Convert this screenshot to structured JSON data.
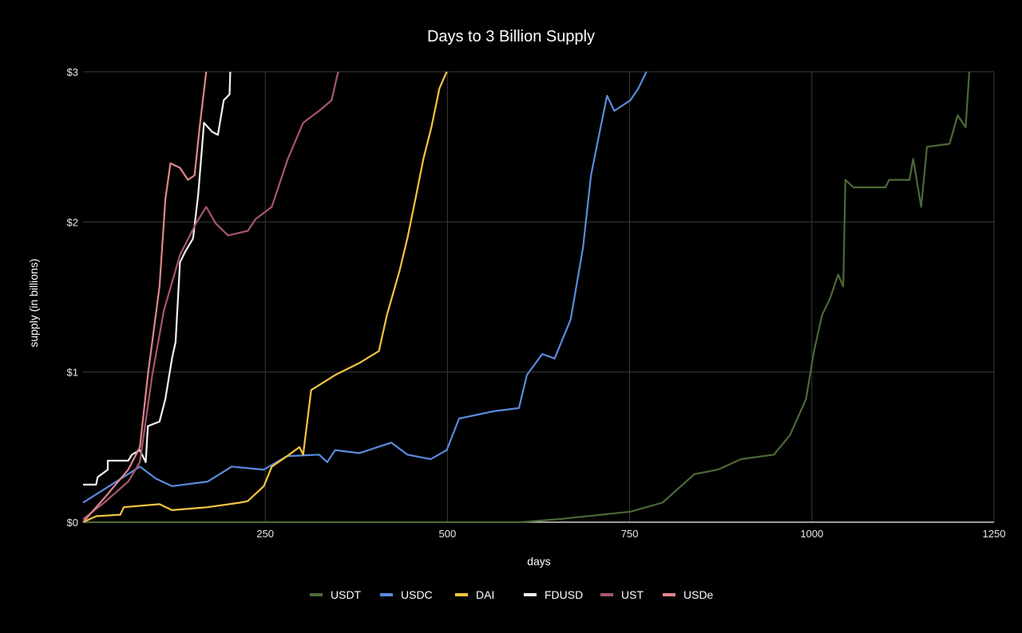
{
  "chart_data": {
    "type": "line",
    "title": "Days to 3 Billion Supply",
    "xlabel": "days",
    "ylabel": "supply (in billions)",
    "xlim": [
      0,
      1250
    ],
    "ylim": [
      0,
      3
    ],
    "xticks": [
      250,
      500,
      750,
      1000,
      1250
    ],
    "xtick_labels": [
      "250",
      "500",
      "750",
      "1000",
      "1250"
    ],
    "yticks": [
      0,
      1,
      2,
      3
    ],
    "ytick_labels": [
      "$0",
      "$1",
      "$2",
      "$3"
    ],
    "grid": true,
    "legend_placement": "bottom",
    "background": "#000000",
    "series": [
      {
        "name": "USDT",
        "color": "#4b6a36",
        "points": [
          [
            0,
            0
          ],
          [
            600,
            0
          ],
          [
            653,
            0.02
          ],
          [
            751,
            0.07
          ],
          [
            795,
            0.13
          ],
          [
            839,
            0.32
          ],
          [
            871,
            0.35
          ],
          [
            903,
            0.42
          ],
          [
            948,
            0.45
          ],
          [
            970,
            0.58
          ],
          [
            992,
            0.82
          ],
          [
            1003,
            1.14
          ],
          [
            1014,
            1.38
          ],
          [
            1025,
            1.49
          ],
          [
            1036,
            1.65
          ],
          [
            1043,
            1.57
          ],
          [
            1046,
            2.28
          ],
          [
            1057,
            2.23
          ],
          [
            1101,
            2.23
          ],
          [
            1106,
            2.28
          ],
          [
            1134,
            2.28
          ],
          [
            1139,
            2.42
          ],
          [
            1150,
            2.1
          ],
          [
            1158,
            2.5
          ],
          [
            1189,
            2.52
          ],
          [
            1200,
            2.71
          ],
          [
            1211,
            2.63
          ],
          [
            1216,
            3.0
          ]
        ]
      },
      {
        "name": "USDC",
        "color": "#5a8bdc",
        "points": [
          [
            0,
            0.13
          ],
          [
            78,
            0.37
          ],
          [
            100,
            0.29
          ],
          [
            122,
            0.24
          ],
          [
            171,
            0.27
          ],
          [
            204,
            0.37
          ],
          [
            248,
            0.35
          ],
          [
            280,
            0.44
          ],
          [
            324,
            0.45
          ],
          [
            335,
            0.4
          ],
          [
            346,
            0.48
          ],
          [
            379,
            0.46
          ],
          [
            423,
            0.53
          ],
          [
            445,
            0.45
          ],
          [
            477,
            0.42
          ],
          [
            499,
            0.48
          ],
          [
            516,
            0.69
          ],
          [
            565,
            0.74
          ],
          [
            598,
            0.76
          ],
          [
            609,
            0.98
          ],
          [
            630,
            1.12
          ],
          [
            647,
            1.09
          ],
          [
            669,
            1.35
          ],
          [
            686,
            1.83
          ],
          [
            697,
            2.31
          ],
          [
            708,
            2.58
          ],
          [
            719,
            2.84
          ],
          [
            729,
            2.74
          ],
          [
            751,
            2.81
          ],
          [
            762,
            2.89
          ],
          [
            773,
            3.0
          ]
        ]
      },
      {
        "name": "DAI",
        "color": "#f4c542",
        "points": [
          [
            0,
            0
          ],
          [
            18,
            0.04
          ],
          [
            51,
            0.05
          ],
          [
            56,
            0.1
          ],
          [
            105,
            0.12
          ],
          [
            122,
            0.08
          ],
          [
            171,
            0.1
          ],
          [
            215,
            0.13
          ],
          [
            226,
            0.14
          ],
          [
            248,
            0.24
          ],
          [
            259,
            0.37
          ],
          [
            280,
            0.44
          ],
          [
            297,
            0.5
          ],
          [
            302,
            0.45
          ],
          [
            313,
            0.88
          ],
          [
            346,
            0.98
          ],
          [
            379,
            1.06
          ],
          [
            406,
            1.14
          ],
          [
            417,
            1.38
          ],
          [
            434,
            1.67
          ],
          [
            445,
            1.89
          ],
          [
            456,
            2.15
          ],
          [
            467,
            2.42
          ],
          [
            478,
            2.63
          ],
          [
            489,
            2.89
          ],
          [
            499,
            3.0
          ]
        ]
      },
      {
        "name": "FDUSD",
        "color": "#f2f2f2",
        "points": [
          [
            0,
            0.25
          ],
          [
            18,
            0.25
          ],
          [
            20,
            0.3
          ],
          [
            34,
            0.35
          ],
          [
            34,
            0.41
          ],
          [
            62,
            0.41
          ],
          [
            67,
            0.45
          ],
          [
            78,
            0.48
          ],
          [
            86,
            0.4
          ],
          [
            89,
            0.64
          ],
          [
            105,
            0.67
          ],
          [
            113,
            0.82
          ],
          [
            122,
            1.09
          ],
          [
            127,
            1.2
          ],
          [
            133,
            1.73
          ],
          [
            140,
            1.8
          ],
          [
            151,
            1.89
          ],
          [
            158,
            2.18
          ],
          [
            166,
            2.66
          ],
          [
            177,
            2.6
          ],
          [
            185,
            2.58
          ],
          [
            193,
            2.81
          ],
          [
            201,
            2.85
          ],
          [
            202,
            3.0
          ]
        ]
      },
      {
        "name": "UST",
        "color": "#a8566b",
        "points": [
          [
            0,
            0.02
          ],
          [
            29,
            0.13
          ],
          [
            62,
            0.27
          ],
          [
            78,
            0.4
          ],
          [
            95,
            0.98
          ],
          [
            111,
            1.41
          ],
          [
            133,
            1.78
          ],
          [
            155,
            1.99
          ],
          [
            169,
            2.1
          ],
          [
            182,
            1.99
          ],
          [
            199,
            1.91
          ],
          [
            226,
            1.94
          ],
          [
            237,
            2.02
          ],
          [
            259,
            2.1
          ],
          [
            281,
            2.42
          ],
          [
            302,
            2.66
          ],
          [
            324,
            2.74
          ],
          [
            341,
            2.81
          ],
          [
            350,
            3.0
          ]
        ]
      },
      {
        "name": "USDe",
        "color": "#e0868c",
        "points": [
          [
            0,
            0
          ],
          [
            29,
            0.16
          ],
          [
            62,
            0.35
          ],
          [
            78,
            0.5
          ],
          [
            89,
            0.98
          ],
          [
            105,
            1.57
          ],
          [
            113,
            2.15
          ],
          [
            120,
            2.39
          ],
          [
            133,
            2.36
          ],
          [
            144,
            2.28
          ],
          [
            153,
            2.31
          ],
          [
            160,
            2.63
          ],
          [
            169,
            3.0
          ]
        ]
      }
    ]
  }
}
